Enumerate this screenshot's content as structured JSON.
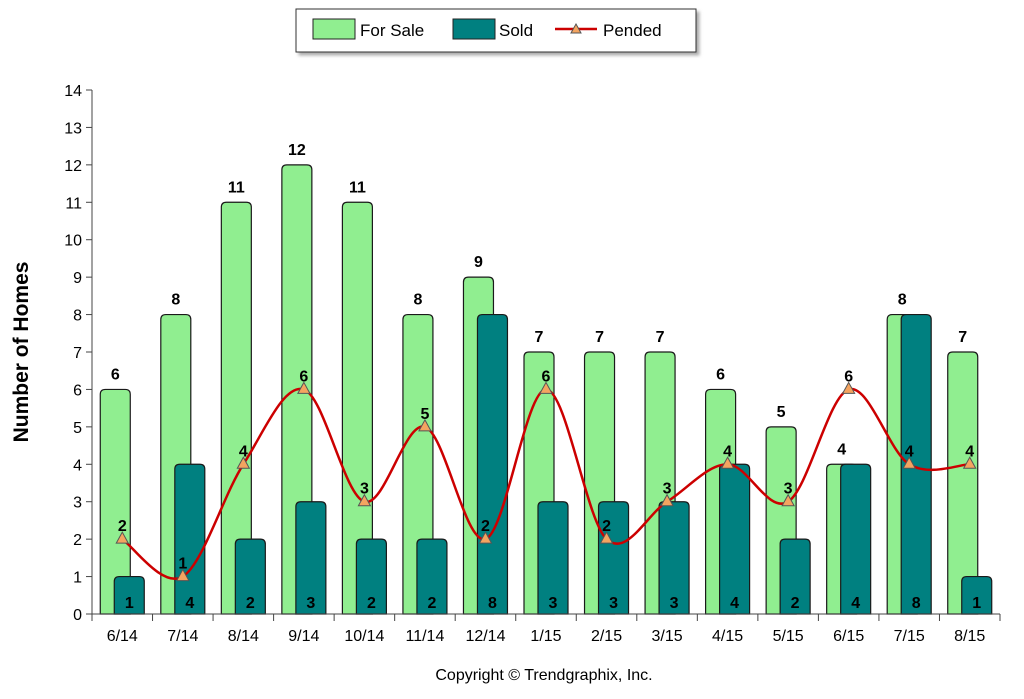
{
  "chart_data": {
    "type": "bar",
    "categories": [
      "6/14",
      "7/14",
      "8/14",
      "9/14",
      "10/14",
      "11/14",
      "12/14",
      "1/15",
      "2/15",
      "3/15",
      "4/15",
      "5/15",
      "6/15",
      "7/15",
      "8/15"
    ],
    "series": [
      {
        "name": "For Sale",
        "kind": "bar",
        "color": "#90ee90",
        "values": [
          6,
          8,
          11,
          12,
          11,
          8,
          9,
          7,
          7,
          7,
          6,
          5,
          4,
          8,
          7
        ]
      },
      {
        "name": "Sold",
        "kind": "bar",
        "color": "#008080",
        "values": [
          1,
          4,
          2,
          3,
          2,
          2,
          8,
          3,
          3,
          3,
          4,
          2,
          4,
          8,
          1
        ]
      },
      {
        "name": "Pended",
        "kind": "line",
        "color": "#cc0000",
        "marker_color": "#f4a460",
        "values": [
          2,
          1,
          4,
          6,
          3,
          5,
          2,
          6,
          2,
          3,
          4,
          3,
          6,
          4,
          4
        ]
      }
    ],
    "ylabel": "Number of Homes",
    "xlabel": "",
    "ylim": [
      0,
      14
    ],
    "yticks": [
      0,
      1,
      2,
      3,
      4,
      5,
      6,
      7,
      8,
      9,
      10,
      11,
      12,
      13,
      14
    ],
    "legend_position": "top-center"
  },
  "footer": {
    "copyright": "Copyright © Trendgraphix, Inc."
  }
}
